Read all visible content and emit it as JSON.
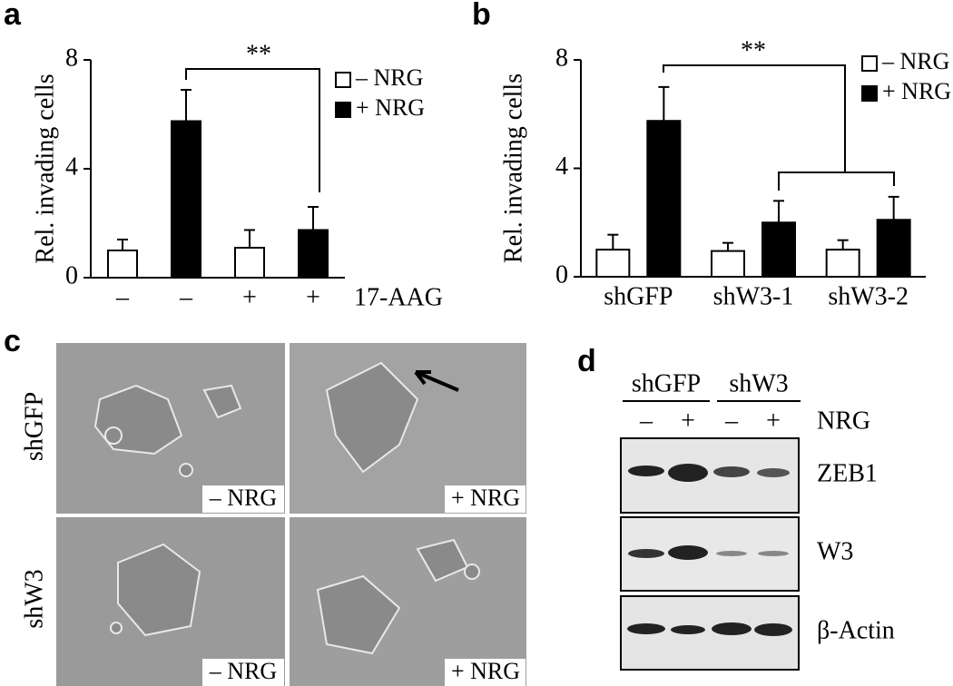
{
  "panel_labels": [
    "a",
    "b",
    "c",
    "d"
  ],
  "chart_data": [
    {
      "type": "bar",
      "ylabel": "Rel. invading cells",
      "xlabel": "17-AAG",
      "annotation": "**",
      "categories": [
        "–",
        "–",
        "+",
        "+"
      ],
      "series": [
        {
          "name": "– NRG",
          "color": "#ffffff",
          "values": [
            1.0,
            null,
            1.1,
            null
          ],
          "errors": [
            0.4,
            null,
            0.65,
            null
          ]
        },
        {
          "name": "+ NRG",
          "color": "#000000",
          "values": [
            null,
            5.75,
            null,
            1.75
          ],
          "errors": [
            null,
            1.15,
            null,
            0.85
          ]
        }
      ],
      "ylim": [
        0,
        8
      ],
      "yticks": [
        0,
        4,
        8
      ]
    },
    {
      "type": "bar",
      "ylabel": "Rel. invading cells",
      "annotation": "**",
      "categories": [
        "shGFP",
        "shW3-1",
        "shW3-2"
      ],
      "series": [
        {
          "name": "– NRG",
          "color": "#ffffff",
          "values": [
            1.0,
            0.95,
            1.0
          ],
          "errors": [
            0.55,
            0.3,
            0.35
          ]
        },
        {
          "name": "+ NRG",
          "color": "#000000",
          "values": [
            5.75,
            2.0,
            2.1
          ],
          "errors": [
            1.25,
            0.8,
            0.85
          ]
        }
      ],
      "ylim": [
        0,
        8
      ],
      "yticks": [
        0,
        4,
        8
      ]
    }
  ],
  "panel_c": {
    "row_labels": [
      "shGFP",
      "shW3"
    ],
    "image_labels": [
      "– NRG",
      "+ NRG",
      "– NRG",
      "+ NRG"
    ]
  },
  "panel_d": {
    "groups": [
      "shGFP",
      "shW3"
    ],
    "treatments": [
      "–",
      "+",
      "–",
      "+"
    ],
    "treatment_label": "NRG",
    "blots": [
      "ZEB1",
      "W3",
      "β-Actin"
    ]
  }
}
